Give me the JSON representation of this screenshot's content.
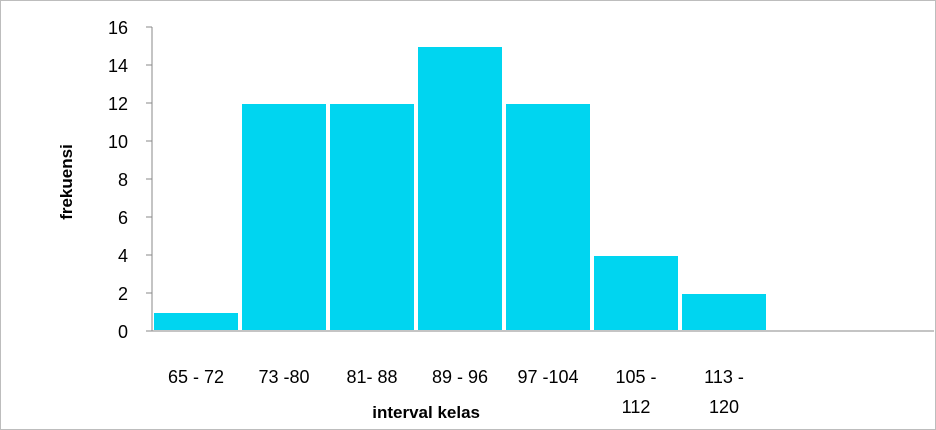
{
  "chart_data": {
    "type": "bar",
    "title": "",
    "xlabel": "interval kelas",
    "ylabel": "frekuensi",
    "categories": [
      [
        "65 - 72"
      ],
      [
        "73 -80"
      ],
      [
        "81- 88"
      ],
      [
        "89 - 96"
      ],
      [
        "97 -104"
      ],
      [
        "105 -",
        "112"
      ],
      [
        "113 -",
        "120"
      ]
    ],
    "values": [
      1,
      12,
      12,
      15,
      12,
      4,
      2
    ],
    "ylim": [
      0,
      16
    ],
    "yticks": [
      "0",
      "2",
      "4",
      "6",
      "8",
      "10",
      "12",
      "14",
      "16"
    ],
    "grid": false,
    "legend": "none",
    "bar_color": "#00d5f0",
    "bar_edge_color": "#ffffff",
    "axis_color": "#888888"
  }
}
